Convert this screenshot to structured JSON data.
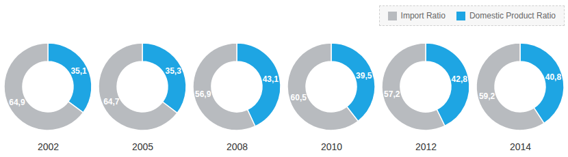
{
  "chart_data": {
    "type": "donut",
    "categories": [
      "2002",
      "2005",
      "2008",
      "2010",
      "2012",
      "2014"
    ],
    "series": [
      {
        "name": "Import Ratio",
        "color": "#b8bbbf",
        "values": [
          64.9,
          64.7,
          56.9,
          60.5,
          57.2,
          59.2
        ],
        "value_labels": [
          "64,9",
          "64,7",
          "56,9",
          "60,5",
          "57,2",
          "59,2"
        ]
      },
      {
        "name": "Domestic Product Ratio",
        "color": "#1ea5e3",
        "values": [
          35.1,
          35.3,
          43.1,
          39.5,
          42.8,
          40.8
        ],
        "value_labels": [
          "35,1",
          "35,3",
          "43,1",
          "39,5",
          "42,8",
          "40,8"
        ]
      }
    ],
    "legend": "top-right",
    "data_labels": true
  }
}
